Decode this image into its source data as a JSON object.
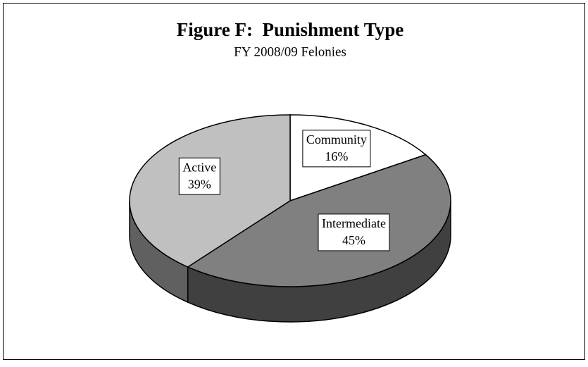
{
  "chart_data": {
    "type": "pie",
    "title": "Figure F:  Punishment Type",
    "subtitle": "FY 2008/09 Felonies",
    "categories": [
      "Community",
      "Intermediate",
      "Active"
    ],
    "values": [
      16,
      45,
      39
    ],
    "value_labels": [
      "16%",
      "45%",
      "39%"
    ],
    "colors": [
      "#ffffff",
      "#808080",
      "#c0c0c0"
    ]
  }
}
